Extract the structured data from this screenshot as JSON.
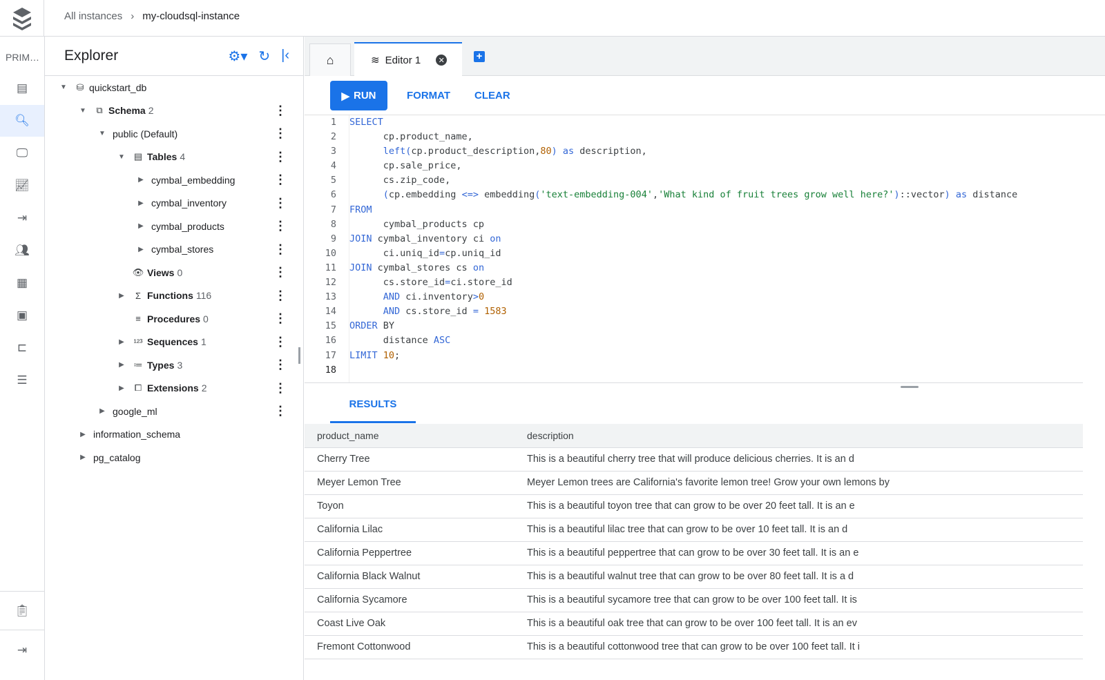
{
  "breadcrumb": {
    "root": "All instances",
    "current": "my-cloudsql-instance"
  },
  "rail": {
    "label": "PRIM…",
    "icons": [
      "instance-icon",
      "search-icon",
      "monitor-icon",
      "chart-icon",
      "connection-icon",
      "users-icon",
      "calendar-icon",
      "table-view-icon",
      "flow-icon",
      "list-icon"
    ],
    "bottom": [
      "notes-icon",
      "expand-icon"
    ]
  },
  "explorer": {
    "title": "Explorer",
    "tree": [
      {
        "label": "quickstart_db",
        "count": "",
        "level": 0,
        "arrow": "down",
        "icon": "database-icon",
        "bold": false,
        "more": false
      },
      {
        "label": "Schema",
        "count": "2",
        "level": 1,
        "arrow": "down",
        "icon": "schema-icon",
        "bold": true,
        "more": true
      },
      {
        "label": "public (Default)",
        "count": "",
        "level": 2,
        "arrow": "down",
        "icon": "",
        "bold": false,
        "more": true
      },
      {
        "label": "Tables",
        "count": "4",
        "level": 3,
        "arrow": "down",
        "icon": "table-icon",
        "bold": true,
        "more": true
      },
      {
        "label": "cymbal_embedding",
        "count": "",
        "level": 4,
        "arrow": "right",
        "icon": "",
        "bold": false,
        "more": true
      },
      {
        "label": "cymbal_inventory",
        "count": "",
        "level": 4,
        "arrow": "right",
        "icon": "",
        "bold": false,
        "more": true
      },
      {
        "label": "cymbal_products",
        "count": "",
        "level": 4,
        "arrow": "right",
        "icon": "",
        "bold": false,
        "more": true
      },
      {
        "label": "cymbal_stores",
        "count": "",
        "level": 4,
        "arrow": "right",
        "icon": "",
        "bold": false,
        "more": true
      },
      {
        "label": "Views",
        "count": "0",
        "level": 3,
        "arrow": "none",
        "icon": "eye-icon",
        "bold": true,
        "more": true
      },
      {
        "label": "Functions",
        "count": "116",
        "level": 3,
        "arrow": "right",
        "icon": "sigma-icon",
        "bold": true,
        "more": true
      },
      {
        "label": "Procedures",
        "count": "0",
        "level": 3,
        "arrow": "none",
        "icon": "procedure-icon",
        "bold": true,
        "more": true
      },
      {
        "label": "Sequences",
        "count": "1",
        "level": 3,
        "arrow": "right",
        "icon": "sequence-icon",
        "bold": true,
        "more": true
      },
      {
        "label": "Types",
        "count": "3",
        "level": 3,
        "arrow": "right",
        "icon": "type-icon",
        "bold": true,
        "more": true
      },
      {
        "label": "Extensions",
        "count": "2",
        "level": 3,
        "arrow": "right",
        "icon": "extension-icon",
        "bold": true,
        "more": true
      },
      {
        "label": "google_ml",
        "count": "",
        "level": 2,
        "arrow": "right",
        "icon": "",
        "bold": false,
        "more": true
      },
      {
        "label": "information_schema",
        "count": "",
        "level": 1,
        "arrow": "right",
        "icon": "",
        "bold": false,
        "more": false
      },
      {
        "label": "pg_catalog",
        "count": "",
        "level": 1,
        "arrow": "right",
        "icon": "",
        "bold": false,
        "more": false
      }
    ]
  },
  "tabs": {
    "editor": "Editor 1"
  },
  "toolbar": {
    "run": "RUN",
    "format": "FORMAT",
    "clear": "CLEAR"
  },
  "code": [
    [
      [
        "k",
        "SELECT"
      ]
    ],
    [
      [
        "p",
        "      cp.product_name,"
      ]
    ],
    [
      [
        "k",
        "      left("
      ],
      [
        "p",
        "cp.product_description,"
      ],
      [
        "n",
        "80"
      ],
      [
        "k",
        ") as "
      ],
      [
        "p",
        "description,"
      ]
    ],
    [
      [
        "p",
        "      cp.sale_price,"
      ]
    ],
    [
      [
        "p",
        "      cs.zip_code,"
      ]
    ],
    [
      [
        "k",
        "      ("
      ],
      [
        "p",
        "cp.embedding "
      ],
      [
        "k",
        "<=>"
      ],
      [
        "p",
        " embedding"
      ],
      [
        "k",
        "("
      ],
      [
        "s",
        "'text-embedding-004'"
      ],
      [
        "p",
        ","
      ],
      [
        "s",
        "'What kind of fruit trees grow well here?'"
      ],
      [
        "k",
        ")"
      ],
      [
        "p",
        "::vector"
      ],
      [
        "k",
        ") as "
      ],
      [
        "p",
        "distance"
      ]
    ],
    [
      [
        "k",
        "FROM"
      ]
    ],
    [
      [
        "p",
        "      cymbal_products cp"
      ]
    ],
    [
      [
        "k",
        "JOIN"
      ],
      [
        "p",
        " cymbal_inventory ci "
      ],
      [
        "k",
        "on"
      ]
    ],
    [
      [
        "p",
        "      ci.uniq_id"
      ],
      [
        "k",
        "="
      ],
      [
        "p",
        "cp.uniq_id"
      ]
    ],
    [
      [
        "k",
        "JOIN"
      ],
      [
        "p",
        " cymbal_stores cs "
      ],
      [
        "k",
        "on"
      ]
    ],
    [
      [
        "p",
        "      cs.store_id"
      ],
      [
        "k",
        "="
      ],
      [
        "p",
        "ci.store_id"
      ]
    ],
    [
      [
        "k",
        "      AND"
      ],
      [
        "p",
        " ci.inventory"
      ],
      [
        "k",
        ">"
      ],
      [
        "n",
        "0"
      ]
    ],
    [
      [
        "k",
        "      AND"
      ],
      [
        "p",
        " cs.store_id "
      ],
      [
        "k",
        "="
      ],
      [
        "n",
        " 1583"
      ]
    ],
    [
      [
        "k",
        "ORDER"
      ],
      [
        "p",
        " BY"
      ]
    ],
    [
      [
        "p",
        "      distance "
      ],
      [
        "k",
        "ASC"
      ]
    ],
    [
      [
        "k",
        "LIMIT "
      ],
      [
        "n",
        "10"
      ],
      [
        "p",
        ";"
      ]
    ],
    []
  ],
  "results": {
    "tab": "RESULTS",
    "columns": [
      "product_name",
      "description"
    ],
    "rows": [
      [
        "Cherry Tree",
        "This is a beautiful cherry tree that will produce delicious cherries. It is an d"
      ],
      [
        "Meyer Lemon Tree",
        "Meyer Lemon trees are California's favorite lemon tree! Grow your own lemons by"
      ],
      [
        "Toyon",
        "This is a beautiful toyon tree that can grow to be over 20 feet tall. It is an e"
      ],
      [
        "California Lilac",
        "This is a beautiful lilac tree that can grow to be over 10 feet tall. It is an d"
      ],
      [
        "California Peppertree",
        "This is a beautiful peppertree that can grow to be over 30 feet tall. It is an e"
      ],
      [
        "California Black Walnut",
        "This is a beautiful walnut tree that can grow to be over 80 feet tall. It is a d"
      ],
      [
        "California Sycamore",
        "This is a beautiful sycamore tree that can grow to be over 100 feet tall. It is"
      ],
      [
        "Coast Live Oak",
        "This is a beautiful oak tree that can grow to be over 100 feet tall. It is an ev"
      ],
      [
        "Fremont Cottonwood",
        "This is a beautiful cottonwood tree that can grow to be over 100 feet tall. It i"
      ]
    ]
  }
}
